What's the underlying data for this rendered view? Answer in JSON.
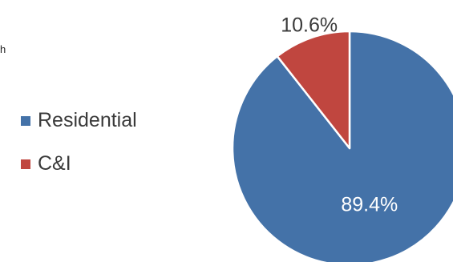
{
  "stray_text": "h",
  "chart_data": {
    "type": "pie",
    "title": "",
    "categories": [
      "Residential",
      "C&I"
    ],
    "values": [
      89.4,
      10.6
    ],
    "data_labels": [
      "89.4%",
      "10.6%"
    ],
    "colors": [
      "#4472a8",
      "#c0463f"
    ],
    "legend_position": "left"
  }
}
